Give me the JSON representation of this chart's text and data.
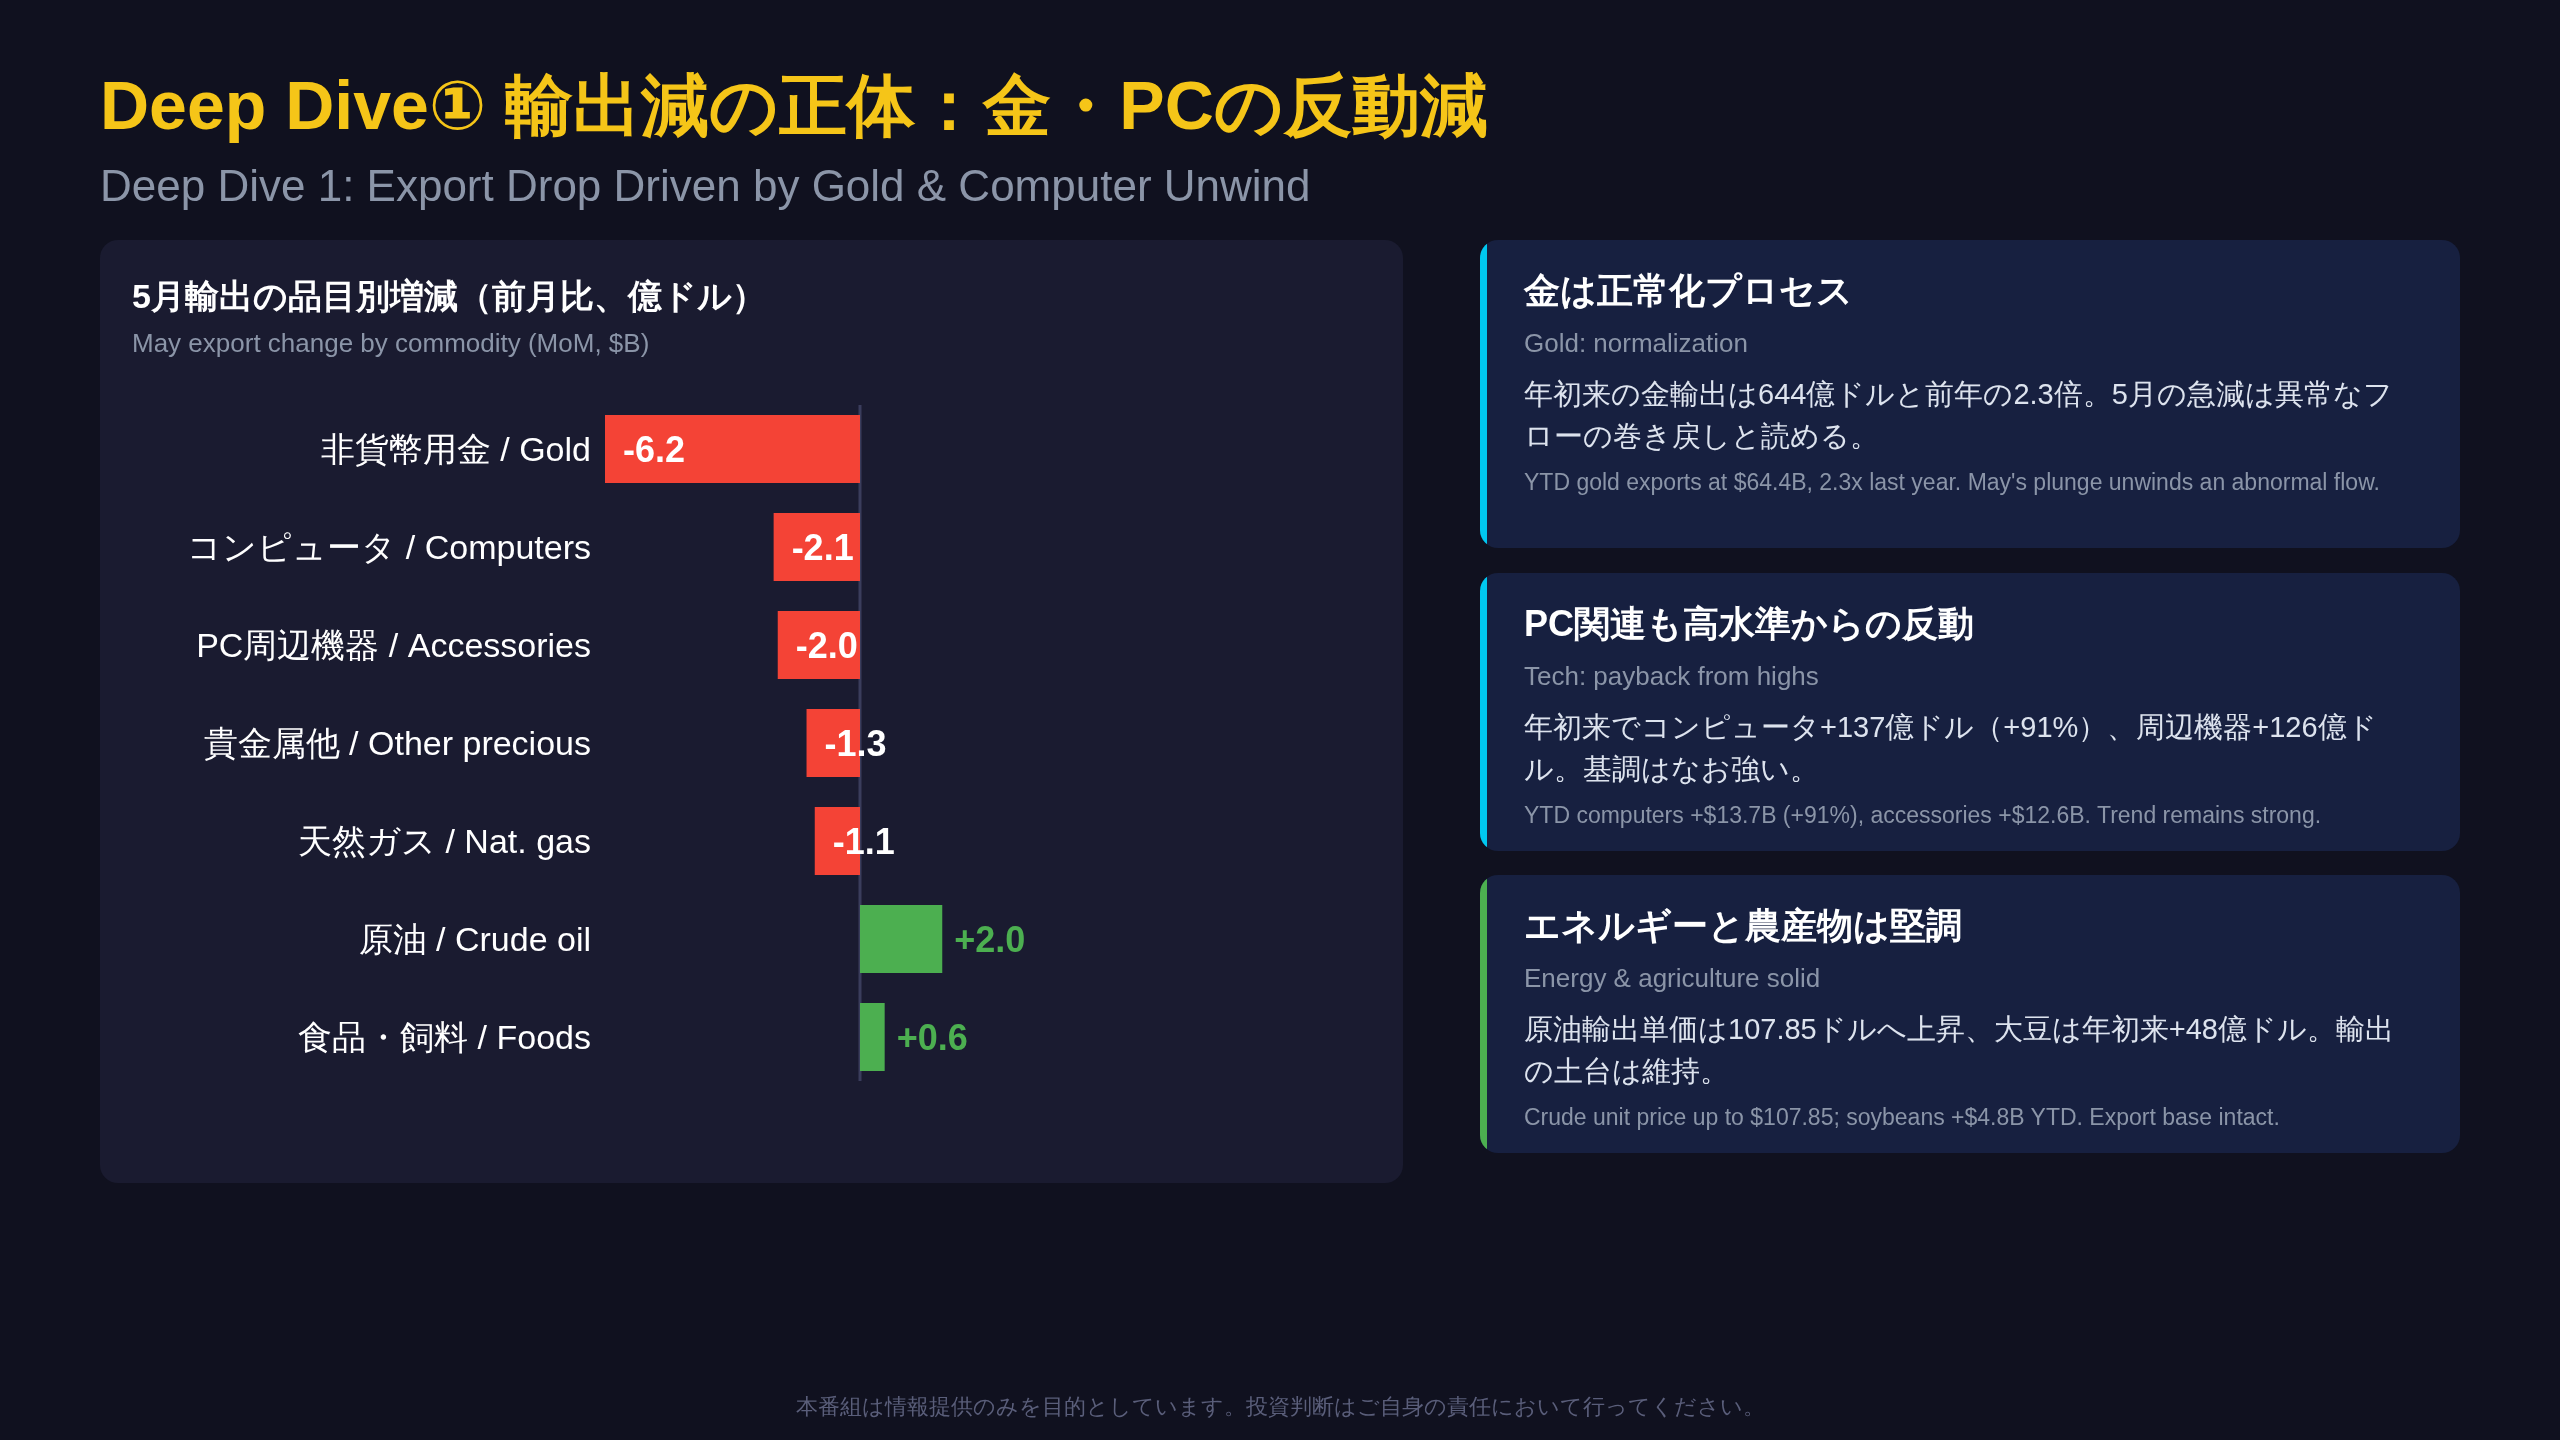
{
  "chart_data": [
    {
      "type": "other",
      "title": "Deep Dive① 輸出減の正体：金・PCの反動減",
      "subtitle": "Deep Dive 1: Export Drop Driven by Gold & Computer Unwind",
      "annotations": [
        "本番組は情報提供のみを目的としています。投資判断はご自身の責任において行ってください。"
      ]
    },
    {
      "type": "bar",
      "orientation": "horizontal",
      "title": "5月輸出の品目別増減（前月比、億ドル）",
      "subtitle": "May export change by commodity (MoM, $B)",
      "categories": [
        "非貨幣用金 / Gold",
        "コンピュータ / Computers",
        "PC周辺機器 / Accessories",
        "貴金属他 / Other precious",
        "天然ガス / Nat. gas",
        "原油 / Crude oil",
        "食品・飼料 / Foods"
      ],
      "values": [
        -6.2,
        -2.1,
        -2.0,
        -1.3,
        -1.1,
        2.0,
        0.6
      ],
      "colors": [
        "#f44336",
        "#f44336",
        "#f44336",
        "#f44336",
        "#f44336",
        "#4caf50",
        "#4caf50"
      ],
      "value_labels": [
        "-6.2",
        "-2.1",
        "-2.0",
        "-1.3",
        "-1.1",
        "+2.0",
        "+0.6"
      ]
    },
    {
      "type": "other",
      "title": "金は正常化プロセス",
      "subtitle": "Gold: normalization",
      "color": "#00c8f0",
      "annotations": [
        "年初来の金輸出は644億ドルと前年の2.3倍。5月の急減は異常なフローの巻き戻しと読める。",
        "YTD gold exports at $64.4B, 2.3x last year. May's plunge unwinds an abnormal flow."
      ]
    },
    {
      "type": "other",
      "title": "PC関連も高水準からの反動",
      "subtitle": "Tech: payback from highs",
      "color": "#00c8f0",
      "annotations": [
        "年初来でコンピュータ+137億ドル（+91%）、周辺機器+126億ドル。基調はなお強い。",
        "YTD computers +$13.7B (+91%), accessories +$12.6B. Trend remains strong."
      ]
    },
    {
      "type": "other",
      "title": "エネルギーと農産物は堅調",
      "subtitle": "Energy & agriculture solid",
      "color": "#4caf50",
      "annotations": [
        "原油輸出単価は107.85ドルへ上昇、大豆は年初来+48億ドル。輸出の土台は維持。",
        "Crude unit price up to $107.85; soybeans +$4.8B YTD. Export base intact."
      ]
    }
  ]
}
